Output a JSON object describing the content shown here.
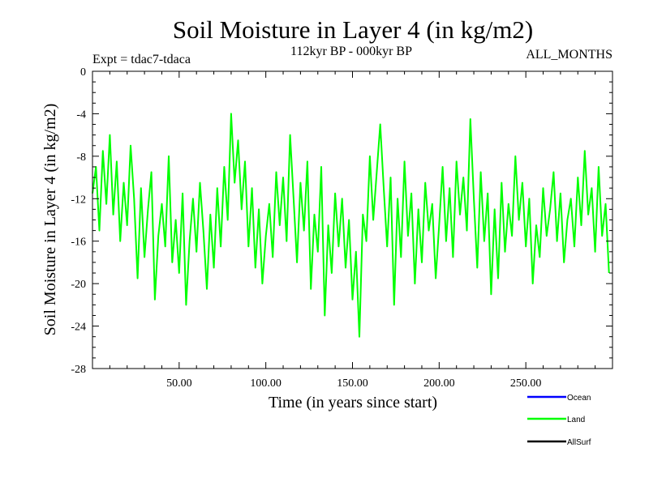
{
  "chart_data": {
    "type": "line",
    "title": "Soil Moisture in Layer 4 (in kg/m2)",
    "subtitle_left": "Expt = tdac7-tdaca",
    "subtitle_center": "112kyr BP - 000kyr BP",
    "subtitle_right": "ALL_MONTHS",
    "xlabel": "Time (in years since start)",
    "ylabel": "Soil Moisture in Layer 4 (in kg/m2)",
    "xlim": [
      0,
      300
    ],
    "ylim": [
      -28,
      0
    ],
    "x_ticks": [
      50,
      100,
      150,
      200,
      250
    ],
    "x_tick_labels": [
      "50.00",
      "100.00",
      "150.00",
      "200.00",
      "250.00"
    ],
    "y_ticks": [
      0,
      -4,
      -8,
      -12,
      -16,
      -20,
      -24,
      -28
    ],
    "y_tick_labels": [
      "0",
      "-4",
      "-8",
      "-12",
      "-16",
      "-20",
      "-24",
      "-28"
    ],
    "legend": [
      {
        "name": "Ocean",
        "color": "#0000ff"
      },
      {
        "name": "Land",
        "color": "#00ff00"
      },
      {
        "name": "AllSurf",
        "color": "#000000"
      }
    ],
    "series": [
      {
        "name": "Land",
        "color": "#00ff00",
        "x_start": 0,
        "x_step": 2,
        "values": [
          -11.5,
          -9.0,
          -15.0,
          -7.5,
          -12.5,
          -6.0,
          -13.5,
          -8.5,
          -16.0,
          -10.5,
          -14.5,
          -7.0,
          -12.0,
          -19.5,
          -11.0,
          -17.5,
          -13.0,
          -9.5,
          -21.5,
          -15.5,
          -12.5,
          -16.5,
          -8.0,
          -18.0,
          -14.0,
          -19.0,
          -11.5,
          -22.0,
          -16.0,
          -12.0,
          -17.0,
          -10.5,
          -15.0,
          -20.5,
          -13.5,
          -18.5,
          -11.0,
          -16.5,
          -9.0,
          -14.0,
          -4.0,
          -10.5,
          -6.5,
          -13.0,
          -8.5,
          -16.5,
          -11.0,
          -18.5,
          -13.0,
          -20.0,
          -15.5,
          -12.5,
          -17.5,
          -9.5,
          -14.5,
          -10.0,
          -16.0,
          -6.0,
          -12.0,
          -18.0,
          -10.5,
          -15.0,
          -8.5,
          -20.5,
          -13.5,
          -17.0,
          -9.0,
          -23.0,
          -14.5,
          -19.0,
          -11.5,
          -16.5,
          -12.0,
          -18.5,
          -14.0,
          -21.5,
          -17.0,
          -25.0,
          -13.5,
          -16.0,
          -8.0,
          -14.0,
          -9.5,
          -5.0,
          -11.0,
          -16.5,
          -10.0,
          -22.0,
          -12.0,
          -17.5,
          -8.5,
          -15.5,
          -11.5,
          -20.0,
          -13.0,
          -18.0,
          -10.5,
          -15.0,
          -12.5,
          -19.5,
          -14.5,
          -9.0,
          -16.0,
          -11.0,
          -17.5,
          -8.5,
          -13.5,
          -10.0,
          -15.0,
          -4.5,
          -12.0,
          -18.5,
          -9.5,
          -16.0,
          -11.5,
          -21.0,
          -13.0,
          -19.5,
          -10.5,
          -17.0,
          -12.5,
          -15.5,
          -8.0,
          -14.0,
          -10.5,
          -16.5,
          -12.0,
          -20.0,
          -14.5,
          -17.5,
          -11.0,
          -15.5,
          -13.0,
          -9.5,
          -16.0,
          -11.5,
          -18.0,
          -14.0,
          -12.0,
          -16.5,
          -10.0,
          -14.5,
          -7.5,
          -13.5,
          -11.0,
          -17.0,
          -9.0,
          -15.5,
          -12.5,
          -19.0
        ]
      }
    ]
  }
}
